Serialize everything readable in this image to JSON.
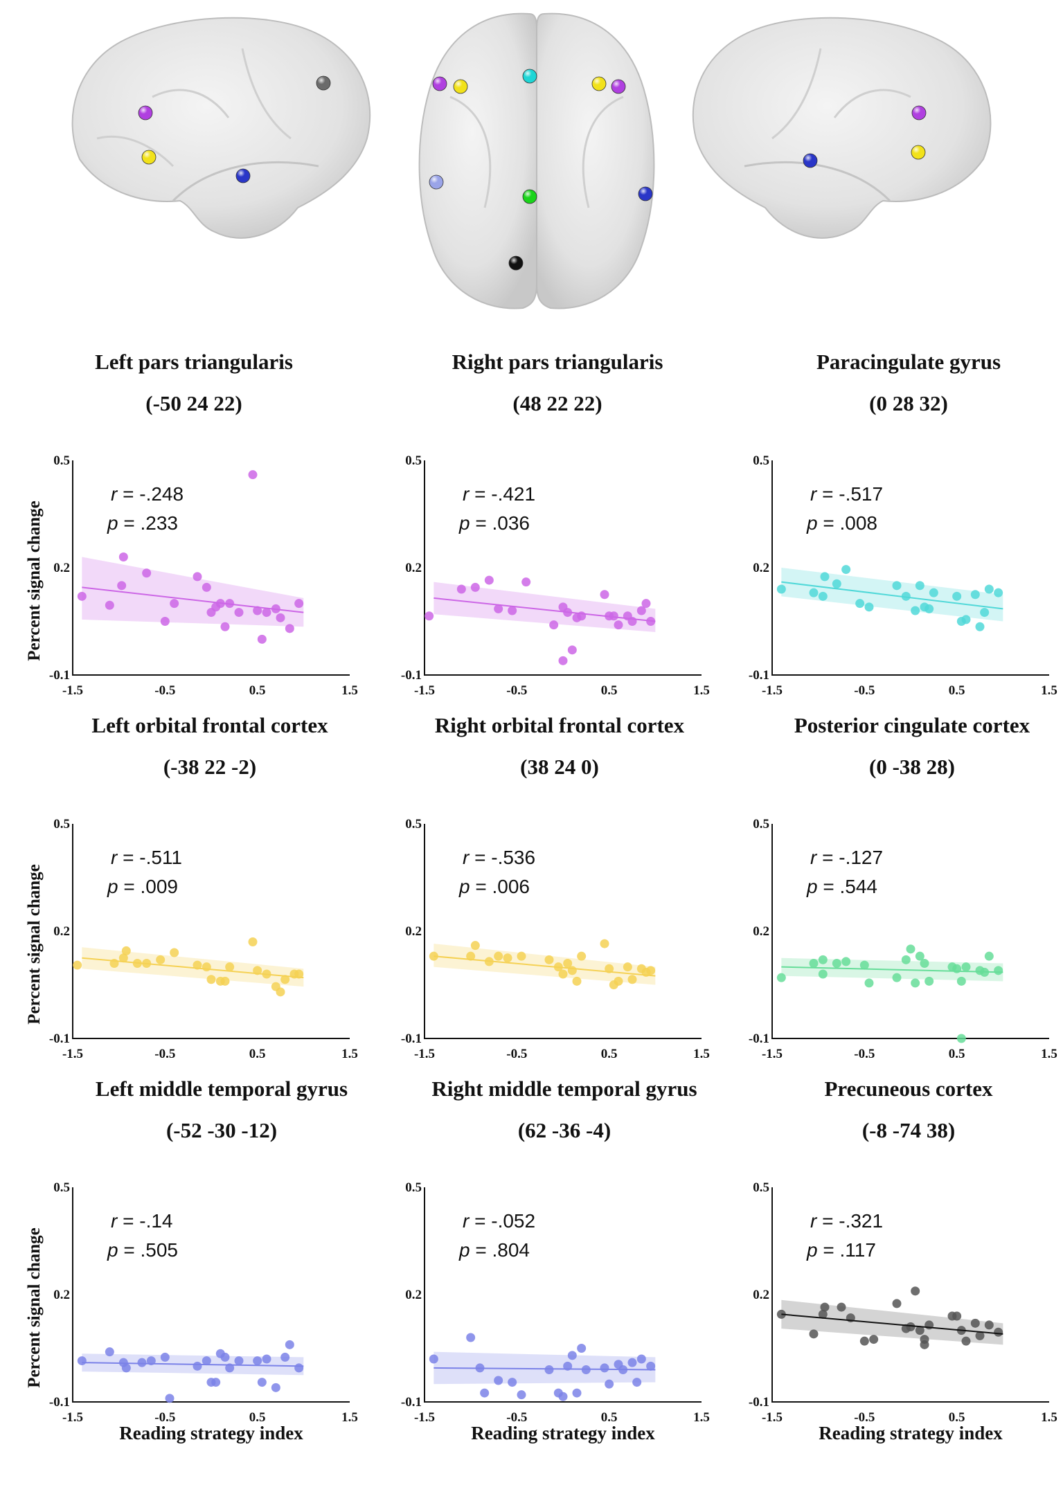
{
  "brain_views": [
    {
      "view": "left-lateral",
      "nodes": [
        {
          "region": "Left pars triangularis",
          "color": "#b040e0"
        },
        {
          "region": "Left orbital frontal cortex",
          "color": "#f2e21a"
        },
        {
          "region": "Left middle temporal gyrus",
          "color": "#2a36c8"
        },
        {
          "region": "Precuneous cortex",
          "color": "#6b6b6b"
        }
      ]
    },
    {
      "view": "dorsal",
      "nodes": [
        {
          "region": "Left pars triangularis",
          "color": "#b040e0"
        },
        {
          "region": "Left orbital frontal cortex",
          "color": "#f2e21a"
        },
        {
          "region": "Paracingulate gyrus",
          "color": "#1ed6d6"
        },
        {
          "region": "Right orbital frontal cortex",
          "color": "#f2e21a"
        },
        {
          "region": "Right pars triangularis",
          "color": "#b040e0"
        },
        {
          "region": "Left middle temporal gyrus",
          "color": "#9aa4e8"
        },
        {
          "region": "Posterior cingulate cortex",
          "color": "#1ad41a"
        },
        {
          "region": "Right middle temporal gyrus",
          "color": "#2a36c8"
        },
        {
          "region": "Precuneous cortex",
          "color": "#111111"
        }
      ]
    },
    {
      "view": "right-lateral",
      "nodes": [
        {
          "region": "Right pars triangularis",
          "color": "#b040e0"
        },
        {
          "region": "Right orbital frontal cortex",
          "color": "#f2e21a"
        },
        {
          "region": "Right middle temporal gyrus",
          "color": "#2a36c8"
        }
      ]
    }
  ],
  "labels": {
    "ylabel": "Percent signal change",
    "xlabel": "Reading strategy index"
  },
  "chart_data": [
    {
      "type": "scatter",
      "title": "Left pars triangularis",
      "coords": "(-50 24 22)",
      "r_value": "-.248",
      "p_value": ".233",
      "color": "#cc66e6",
      "xlim": [
        -1.5,
        1.5
      ],
      "ylim": [
        -0.1,
        0.5
      ],
      "xticks": [
        "-1.5",
        "-0.5",
        "0.5",
        "1.5"
      ],
      "yticks": [
        "-0.1",
        "0.2",
        "0.5"
      ],
      "fit": {
        "x": [
          -1.4,
          1.0
        ],
        "y": [
          0.145,
          0.075
        ]
      },
      "ci": {
        "lower": [
          0.055,
          0.035
        ],
        "upper": [
          0.23,
          0.115
        ]
      },
      "points": [
        [
          -1.4,
          0.12
        ],
        [
          -1.1,
          0.095
        ],
        [
          -0.97,
          0.15
        ],
        [
          -0.95,
          0.23
        ],
        [
          -0.7,
          0.185
        ],
        [
          -0.5,
          0.05
        ],
        [
          -0.4,
          0.1
        ],
        [
          -0.15,
          0.175
        ],
        [
          -0.05,
          0.145
        ],
        [
          0.0,
          0.075
        ],
        [
          0.05,
          0.09
        ],
        [
          0.1,
          0.1
        ],
        [
          0.15,
          0.035
        ],
        [
          0.2,
          0.1
        ],
        [
          0.3,
          0.075
        ],
        [
          0.45,
          0.46
        ],
        [
          0.5,
          0.08
        ],
        [
          0.55,
          0.0
        ],
        [
          0.6,
          0.075
        ],
        [
          0.7,
          0.085
        ],
        [
          0.75,
          0.06
        ],
        [
          0.85,
          0.03
        ],
        [
          0.95,
          0.1
        ]
      ]
    },
    {
      "type": "scatter",
      "title": "Right pars triangularis",
      "coords": "(48 22 22)",
      "r_value": "-.421",
      "p_value": ".036",
      "color": "#cc66e6",
      "xlim": [
        -1.5,
        1.5
      ],
      "ylim": [
        -0.1,
        0.5
      ],
      "xticks": [
        "-1.5",
        "-0.5",
        "0.5",
        "1.5"
      ],
      "yticks": [
        "-0.1",
        "0.2",
        "0.5"
      ],
      "fit": {
        "x": [
          -1.4,
          1.0
        ],
        "y": [
          0.115,
          0.05
        ]
      },
      "ci": {
        "lower": [
          0.07,
          0.02
        ],
        "upper": [
          0.16,
          0.085
        ]
      },
      "points": [
        [
          -1.45,
          0.065
        ],
        [
          -1.1,
          0.14
        ],
        [
          -0.95,
          0.145
        ],
        [
          -0.8,
          0.165
        ],
        [
          -0.7,
          0.085
        ],
        [
          -0.55,
          0.08
        ],
        [
          -0.4,
          0.16
        ],
        [
          -0.1,
          0.04
        ],
        [
          0.0,
          0.09
        ],
        [
          0.0,
          -0.06
        ],
        [
          0.05,
          0.075
        ],
        [
          0.1,
          -0.03
        ],
        [
          0.15,
          0.06
        ],
        [
          0.2,
          0.065
        ],
        [
          0.45,
          0.125
        ],
        [
          0.5,
          0.065
        ],
        [
          0.55,
          0.065
        ],
        [
          0.6,
          0.04
        ],
        [
          0.7,
          0.065
        ],
        [
          0.75,
          0.05
        ],
        [
          0.85,
          0.08
        ],
        [
          0.9,
          0.1
        ],
        [
          0.95,
          0.05
        ]
      ]
    },
    {
      "type": "scatter",
      "title": "Paracingulate gyrus",
      "coords": "(0 28 32)",
      "r_value": "-.517",
      "p_value": ".008",
      "color": "#50d8d8",
      "xlim": [
        -1.5,
        1.5
      ],
      "ylim": [
        -0.1,
        0.5
      ],
      "xticks": [
        "-1.5",
        "-0.5",
        "0.5",
        "1.5"
      ],
      "yticks": [
        "-0.1",
        "0.2",
        "0.5"
      ],
      "fit": {
        "x": [
          -1.4,
          1.0
        ],
        "y": [
          0.16,
          0.085
        ]
      },
      "ci": {
        "lower": [
          0.12,
          0.05
        ],
        "upper": [
          0.2,
          0.125
        ]
      },
      "points": [
        [
          -1.4,
          0.14
        ],
        [
          -1.05,
          0.13
        ],
        [
          -0.95,
          0.12
        ],
        [
          -0.93,
          0.175
        ],
        [
          -0.8,
          0.155
        ],
        [
          -0.7,
          0.195
        ],
        [
          -0.55,
          0.1
        ],
        [
          -0.45,
          0.09
        ],
        [
          -0.15,
          0.15
        ],
        [
          -0.05,
          0.12
        ],
        [
          0.05,
          0.08
        ],
        [
          0.1,
          0.15
        ],
        [
          0.15,
          0.09
        ],
        [
          0.2,
          0.085
        ],
        [
          0.25,
          0.13
        ],
        [
          0.5,
          0.12
        ],
        [
          0.55,
          0.05
        ],
        [
          0.6,
          0.055
        ],
        [
          0.7,
          0.125
        ],
        [
          0.75,
          0.035
        ],
        [
          0.8,
          0.075
        ],
        [
          0.85,
          0.14
        ],
        [
          0.95,
          0.13
        ]
      ]
    },
    {
      "type": "scatter",
      "title": "Left orbital frontal cortex",
      "coords": "(-38 22 -2)",
      "r_value": "-.511",
      "p_value": ".009",
      "color": "#f5d154",
      "xlim": [
        -1.5,
        1.5
      ],
      "ylim": [
        -0.1,
        0.5
      ],
      "xticks": [
        "-1.5",
        "-0.5",
        "0.5",
        "1.5"
      ],
      "yticks": [
        "-0.1",
        "0.2",
        "0.5"
      ],
      "fit": {
        "x": [
          -1.4,
          1.0
        ],
        "y": [
          0.125,
          0.07
        ]
      },
      "ci": {
        "lower": [
          0.095,
          0.045
        ],
        "upper": [
          0.155,
          0.095
        ]
      },
      "points": [
        [
          -1.45,
          0.105
        ],
        [
          -1.05,
          0.11
        ],
        [
          -0.95,
          0.125
        ],
        [
          -0.92,
          0.145
        ],
        [
          -0.8,
          0.11
        ],
        [
          -0.7,
          0.11
        ],
        [
          -0.55,
          0.12
        ],
        [
          -0.4,
          0.14
        ],
        [
          -0.15,
          0.105
        ],
        [
          -0.05,
          0.1
        ],
        [
          0.0,
          0.065
        ],
        [
          0.1,
          0.06
        ],
        [
          0.15,
          0.06
        ],
        [
          0.2,
          0.1
        ],
        [
          0.45,
          0.17
        ],
        [
          0.5,
          0.09
        ],
        [
          0.6,
          0.08
        ],
        [
          0.7,
          0.045
        ],
        [
          0.75,
          0.03
        ],
        [
          0.8,
          0.065
        ],
        [
          0.9,
          0.08
        ],
        [
          0.95,
          0.08
        ]
      ]
    },
    {
      "type": "scatter",
      "title": "Right orbital frontal cortex",
      "coords": "(38 24 0)",
      "r_value": "-.536",
      "p_value": ".006",
      "color": "#f5d154",
      "xlim": [
        -1.5,
        1.5
      ],
      "ylim": [
        -0.1,
        0.5
      ],
      "xticks": [
        "-1.5",
        "-0.5",
        "0.5",
        "1.5"
      ],
      "yticks": [
        "-0.1",
        "0.2",
        "0.5"
      ],
      "fit": {
        "x": [
          -1.4,
          1.0
        ],
        "y": [
          0.13,
          0.075
        ]
      },
      "ci": {
        "lower": [
          0.1,
          0.05
        ],
        "upper": [
          0.165,
          0.1
        ]
      },
      "points": [
        [
          -1.4,
          0.13
        ],
        [
          -1.0,
          0.13
        ],
        [
          -0.95,
          0.16
        ],
        [
          -0.8,
          0.115
        ],
        [
          -0.7,
          0.13
        ],
        [
          -0.6,
          0.125
        ],
        [
          -0.45,
          0.13
        ],
        [
          -0.15,
          0.12
        ],
        [
          -0.05,
          0.1
        ],
        [
          0.0,
          0.08
        ],
        [
          0.05,
          0.11
        ],
        [
          0.1,
          0.09
        ],
        [
          0.15,
          0.06
        ],
        [
          0.2,
          0.13
        ],
        [
          0.45,
          0.165
        ],
        [
          0.5,
          0.095
        ],
        [
          0.55,
          0.05
        ],
        [
          0.6,
          0.06
        ],
        [
          0.7,
          0.1
        ],
        [
          0.75,
          0.065
        ],
        [
          0.85,
          0.095
        ],
        [
          0.9,
          0.085
        ],
        [
          0.95,
          0.09
        ]
      ]
    },
    {
      "type": "scatter",
      "title": "Posterior cingulate cortex",
      "coords": "(0 -38 28)",
      "r_value": "-.127",
      "p_value": ".544",
      "color": "#66dd99",
      "xlim": [
        -1.5,
        1.5
      ],
      "ylim": [
        -0.1,
        0.5
      ],
      "xticks": [
        "-1.5",
        "-0.5",
        "0.5",
        "1.5"
      ],
      "yticks": [
        "-0.1",
        "0.2",
        "0.5"
      ],
      "fit": {
        "x": [
          -1.4,
          1.0
        ],
        "y": [
          0.1,
          0.085
        ]
      },
      "ci": {
        "lower": [
          0.075,
          0.06
        ],
        "upper": [
          0.125,
          0.11
        ]
      },
      "points": [
        [
          -1.4,
          0.07
        ],
        [
          -1.05,
          0.11
        ],
        [
          -0.95,
          0.12
        ],
        [
          -0.95,
          0.08
        ],
        [
          -0.8,
          0.11
        ],
        [
          -0.7,
          0.115
        ],
        [
          -0.5,
          0.105
        ],
        [
          -0.45,
          0.055
        ],
        [
          -0.15,
          0.07
        ],
        [
          -0.05,
          0.12
        ],
        [
          0.0,
          0.15
        ],
        [
          0.05,
          0.055
        ],
        [
          0.1,
          0.13
        ],
        [
          0.15,
          0.11
        ],
        [
          0.2,
          0.06
        ],
        [
          0.45,
          0.1
        ],
        [
          0.5,
          0.095
        ],
        [
          0.55,
          0.06
        ],
        [
          0.6,
          0.1
        ],
        [
          0.75,
          0.09
        ],
        [
          0.8,
          0.085
        ],
        [
          0.85,
          0.13
        ],
        [
          0.95,
          0.09
        ],
        [
          0.55,
          -0.1
        ]
      ]
    },
    {
      "type": "scatter",
      "title": "Left middle temporal gyrus",
      "coords": "(-52 -30 -12)",
      "r_value": "-.14",
      "p_value": ".505",
      "color": "#7b82e8",
      "xlim": [
        -1.5,
        1.5
      ],
      "ylim": [
        -0.1,
        0.5
      ],
      "xticks": [
        "-1.5",
        "-0.5",
        "0.5",
        "1.5"
      ],
      "yticks": [
        "-0.1",
        "0.2",
        "0.5"
      ],
      "fit": {
        "x": [
          -1.4,
          1.0
        ],
        "y": [
          0.01,
          0.0
        ]
      },
      "ci": {
        "lower": [
          -0.015,
          -0.025
        ],
        "upper": [
          0.035,
          0.025
        ]
      },
      "points": [
        [
          -1.4,
          0.015
        ],
        [
          -1.1,
          0.04
        ],
        [
          -0.95,
          0.01
        ],
        [
          -0.92,
          -0.005
        ],
        [
          -0.75,
          0.01
        ],
        [
          -0.65,
          0.015
        ],
        [
          -0.5,
          0.025
        ],
        [
          -0.45,
          -0.09
        ],
        [
          -0.15,
          0.0
        ],
        [
          -0.05,
          0.015
        ],
        [
          0.0,
          -0.045
        ],
        [
          0.05,
          -0.045
        ],
        [
          0.1,
          0.035
        ],
        [
          0.15,
          0.025
        ],
        [
          0.2,
          -0.005
        ],
        [
          0.3,
          0.015
        ],
        [
          0.5,
          0.015
        ],
        [
          0.55,
          -0.045
        ],
        [
          0.6,
          0.02
        ],
        [
          0.7,
          -0.06
        ],
        [
          0.8,
          0.025
        ],
        [
          0.85,
          0.06
        ],
        [
          0.95,
          -0.005
        ]
      ]
    },
    {
      "type": "scatter",
      "title": "Right middle temporal gyrus",
      "coords": "(62 -36 -4)",
      "r_value": "-.052",
      "p_value": ".804",
      "color": "#7b82e8",
      "xlim": [
        -1.5,
        1.5
      ],
      "ylim": [
        -0.1,
        0.5
      ],
      "xticks": [
        "-1.5",
        "-0.5",
        "0.5",
        "1.5"
      ],
      "yticks": [
        "-0.1",
        "0.2",
        "0.5"
      ],
      "fit": {
        "x": [
          -1.4,
          1.0
        ],
        "y": [
          -0.005,
          -0.01
        ]
      },
      "ci": {
        "lower": [
          -0.05,
          -0.045
        ],
        "upper": [
          0.04,
          0.025
        ]
      },
      "points": [
        [
          -1.4,
          0.02
        ],
        [
          -1.0,
          0.08
        ],
        [
          -0.9,
          -0.005
        ],
        [
          -0.85,
          -0.075
        ],
        [
          -0.7,
          -0.04
        ],
        [
          -0.55,
          -0.045
        ],
        [
          -0.45,
          -0.08
        ],
        [
          -0.15,
          -0.01
        ],
        [
          -0.05,
          -0.075
        ],
        [
          0.0,
          -0.085
        ],
        [
          0.05,
          0.0
        ],
        [
          0.1,
          0.03
        ],
        [
          0.15,
          -0.075
        ],
        [
          0.2,
          0.05
        ],
        [
          0.25,
          -0.01
        ],
        [
          0.45,
          -0.005
        ],
        [
          0.5,
          -0.05
        ],
        [
          0.6,
          0.005
        ],
        [
          0.65,
          -0.01
        ],
        [
          0.75,
          0.01
        ],
        [
          0.8,
          -0.045
        ],
        [
          0.85,
          0.02
        ],
        [
          0.95,
          0.0
        ]
      ]
    },
    {
      "type": "scatter",
      "title": "Precuneous cortex",
      "coords": "(-8 -74 38)",
      "r_value": "-.321",
      "p_value": ".117",
      "color": "#555555",
      "xlim": [
        -1.5,
        1.5
      ],
      "ylim": [
        -0.1,
        0.5
      ],
      "xticks": [
        "-1.5",
        "-0.5",
        "0.5",
        "1.5"
      ],
      "yticks": [
        "-0.1",
        "0.2",
        "0.5"
      ],
      "fit": {
        "x": [
          -1.4,
          1.0
        ],
        "y": [
          0.145,
          0.09
        ]
      },
      "ci": {
        "lower": [
          0.105,
          0.06
        ],
        "upper": [
          0.185,
          0.12
        ]
      },
      "points": [
        [
          -1.4,
          0.145
        ],
        [
          -1.05,
          0.09
        ],
        [
          -0.95,
          0.145
        ],
        [
          -0.93,
          0.165
        ],
        [
          -0.75,
          0.165
        ],
        [
          -0.65,
          0.135
        ],
        [
          -0.5,
          0.07
        ],
        [
          -0.4,
          0.075
        ],
        [
          -0.15,
          0.175
        ],
        [
          -0.05,
          0.105
        ],
        [
          0.0,
          0.11
        ],
        [
          0.05,
          0.21
        ],
        [
          0.1,
          0.1
        ],
        [
          0.15,
          0.06
        ],
        [
          0.15,
          0.075
        ],
        [
          0.2,
          0.115
        ],
        [
          0.45,
          0.14
        ],
        [
          0.5,
          0.14
        ],
        [
          0.55,
          0.1
        ],
        [
          0.6,
          0.07
        ],
        [
          0.7,
          0.12
        ],
        [
          0.75,
          0.085
        ],
        [
          0.85,
          0.115
        ],
        [
          0.95,
          0.095
        ]
      ]
    }
  ]
}
